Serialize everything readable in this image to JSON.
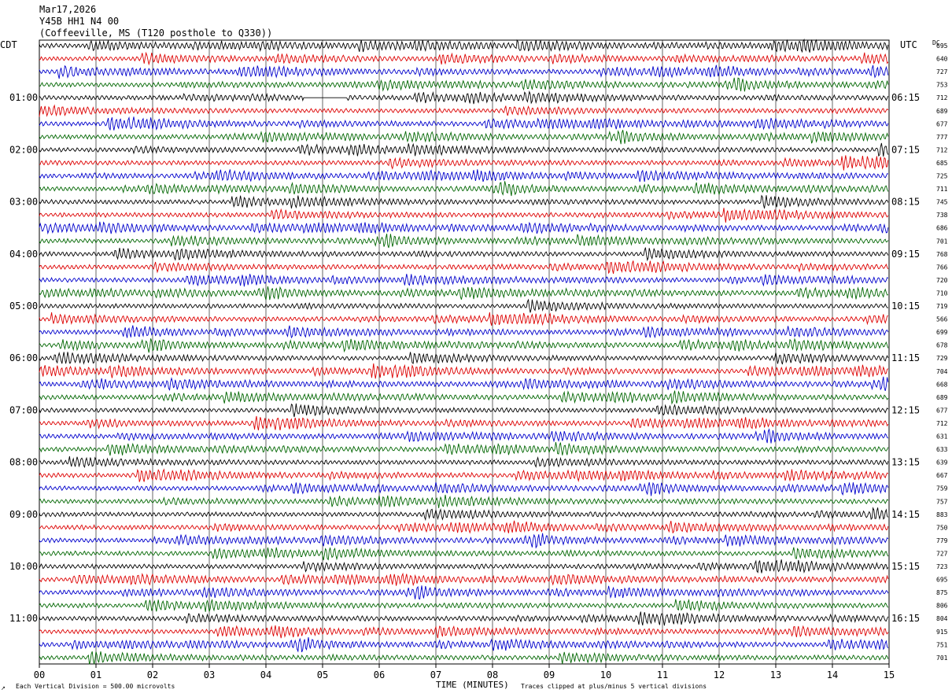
{
  "header": {
    "date": "Mar17,2026",
    "station": "Y45B HH1 N4 00",
    "location": "(Coffeeville, MS (T120 posthole to Q330))"
  },
  "left_tz": "CDT",
  "right_tz": "UTC",
  "dc_label": "DC",
  "left_hour_labels": [
    "01:00",
    "02:00",
    "03:00",
    "04:00",
    "05:00",
    "06:00",
    "07:00",
    "08:00",
    "09:00",
    "10:00",
    "11:00"
  ],
  "right_hour_labels": [
    "06:15",
    "07:15",
    "08:15",
    "09:15",
    "10:15",
    "11:15",
    "12:15",
    "13:15",
    "14:15",
    "15:15",
    "16:15"
  ],
  "dc_values": [
    "695",
    "640",
    "727",
    "753",
    "712",
    "689",
    "677",
    "777",
    "712",
    "685",
    "725",
    "711",
    "745",
    "738",
    "686",
    "701",
    "768",
    "766",
    "720",
    "710",
    "719",
    "566",
    "699",
    "678",
    "729",
    "704",
    "668",
    "689",
    "677",
    "712",
    "631",
    "633",
    "639",
    "667",
    "759",
    "757",
    "883",
    "750",
    "779",
    "727",
    "723",
    "695",
    "875",
    "806",
    "804",
    "915",
    "751",
    "701"
  ],
  "x_ticks": [
    "00",
    "01",
    "02",
    "03",
    "04",
    "05",
    "06",
    "07",
    "08",
    "09",
    "10",
    "11",
    "12",
    "13",
    "14",
    "15"
  ],
  "footer": {
    "scale_note": "Each Vertical Division =  500.00 microvolts",
    "xlabel": "TIME (MINUTES)",
    "clip_note": "Traces clipped at plus/minus 5 vertical divisions"
  },
  "chart_data": {
    "type": "line",
    "title": "Y45B HH1 N4 00",
    "subtitle": "(Coffeeville, MS (T120 posthole to Q330))",
    "xlabel": "TIME (MINUTES)",
    "ylabel": "",
    "xlim": [
      0,
      15
    ],
    "trace_count": 48,
    "trace_colors": [
      "#000000",
      "#dd0000",
      "#0000cc",
      "#006600"
    ],
    "series_count_per_hour": 4,
    "grid": "vertical minute lines",
    "colors": {
      "black": "#000000",
      "red": "#dd0000",
      "blue": "#0000cc",
      "green": "#006600"
    }
  }
}
